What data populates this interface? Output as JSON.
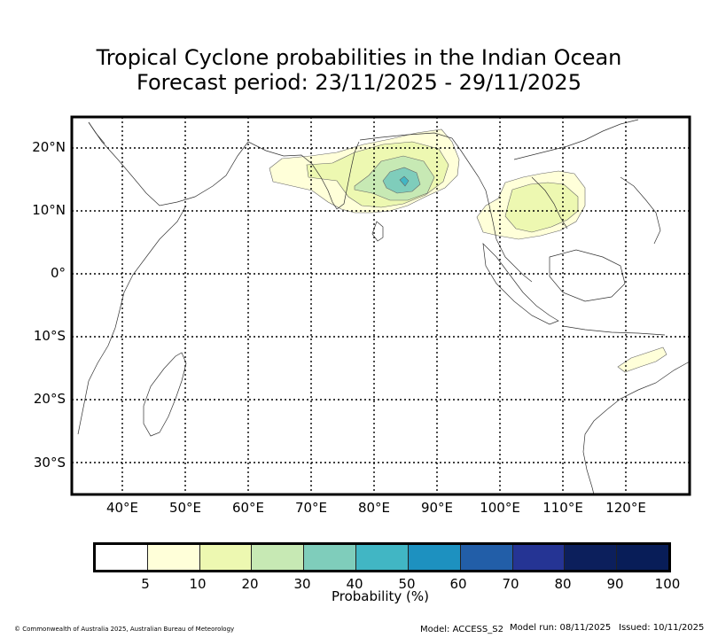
{
  "title": {
    "line1": "Tropical Cyclone probabilities in the Indian Ocean",
    "line2": "Forecast period: 23/11/2025 - 29/11/2025"
  },
  "map": {
    "lon_range": [
      32,
      130
    ],
    "lat_range": [
      -35,
      25
    ],
    "lat_labels": [
      "20°N",
      "10°N",
      "0°",
      "10°S",
      "20°S",
      "30°S"
    ],
    "lat_values": [
      20,
      10,
      0,
      -10,
      -20,
      -30
    ],
    "lon_labels": [
      "40°E",
      "50°E",
      "60°E",
      "70°E",
      "80°E",
      "90°E",
      "100°E",
      "110°E",
      "120°E"
    ],
    "lon_values": [
      40,
      50,
      60,
      70,
      80,
      90,
      100,
      110,
      120
    ]
  },
  "colorbar": {
    "colors": [
      "#ffffff",
      "#ffffd9",
      "#edf8b1",
      "#c7e9b4",
      "#7fcdbb",
      "#41b6c4",
      "#1d91c0",
      "#225ea8",
      "#253494",
      "#0c1f5c",
      "#081d58"
    ],
    "ticks": [
      "5",
      "10",
      "20",
      "30",
      "40",
      "50",
      "60",
      "70",
      "80",
      "90",
      "100"
    ],
    "label": "Probability (%)"
  },
  "footer": {
    "copyright": "© Commonwealth of Australia 2025, Australian Bureau of Meteorology",
    "model": "Model: ACCESS_S2",
    "model_run": "Model run: 08/11/2025",
    "issued": "Issued: 10/11/2025"
  }
}
